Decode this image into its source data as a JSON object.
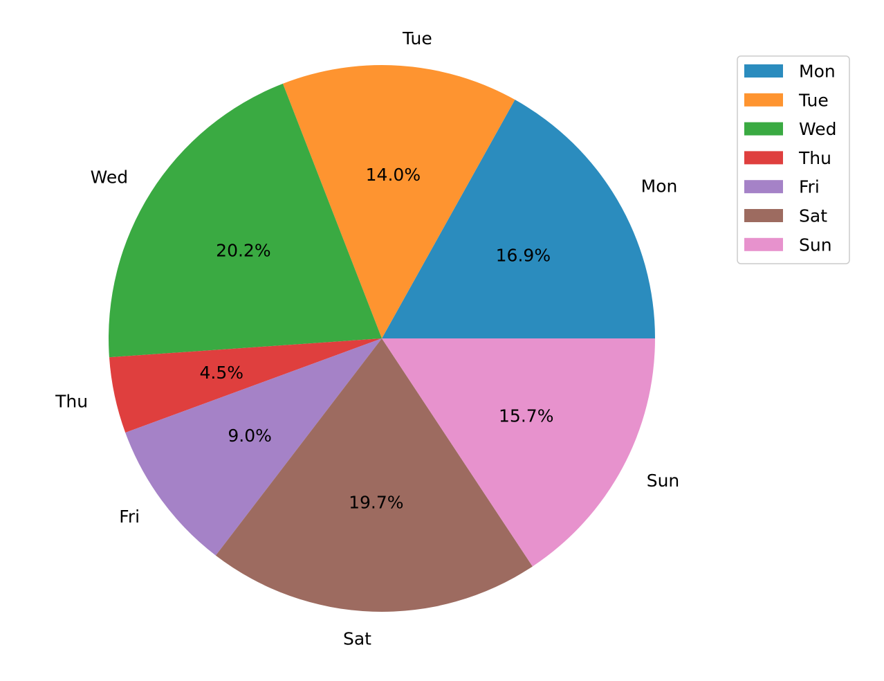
{
  "chart_data": {
    "type": "pie",
    "categories": [
      "Mon",
      "Tue",
      "Wed",
      "Thu",
      "Fri",
      "Sat",
      "Sun"
    ],
    "values": [
      16.9,
      14.0,
      20.2,
      4.5,
      9.0,
      19.7,
      15.7
    ],
    "value_labels": [
      "16.9%",
      "14.0%",
      "20.2%",
      "4.5%",
      "9.0%",
      "19.7%",
      "15.7%"
    ],
    "colors": [
      "#2b8cbe",
      "#fe9430",
      "#3aaa42",
      "#df3f3e",
      "#a582c7",
      "#9d6b60",
      "#e792cd"
    ],
    "start_angle_deg": 0,
    "direction": "counterclockwise",
    "legend": {
      "placement": "top-right",
      "entries": [
        "Mon",
        "Tue",
        "Wed",
        "Thu",
        "Fri",
        "Sat",
        "Sun"
      ]
    },
    "title": ""
  }
}
